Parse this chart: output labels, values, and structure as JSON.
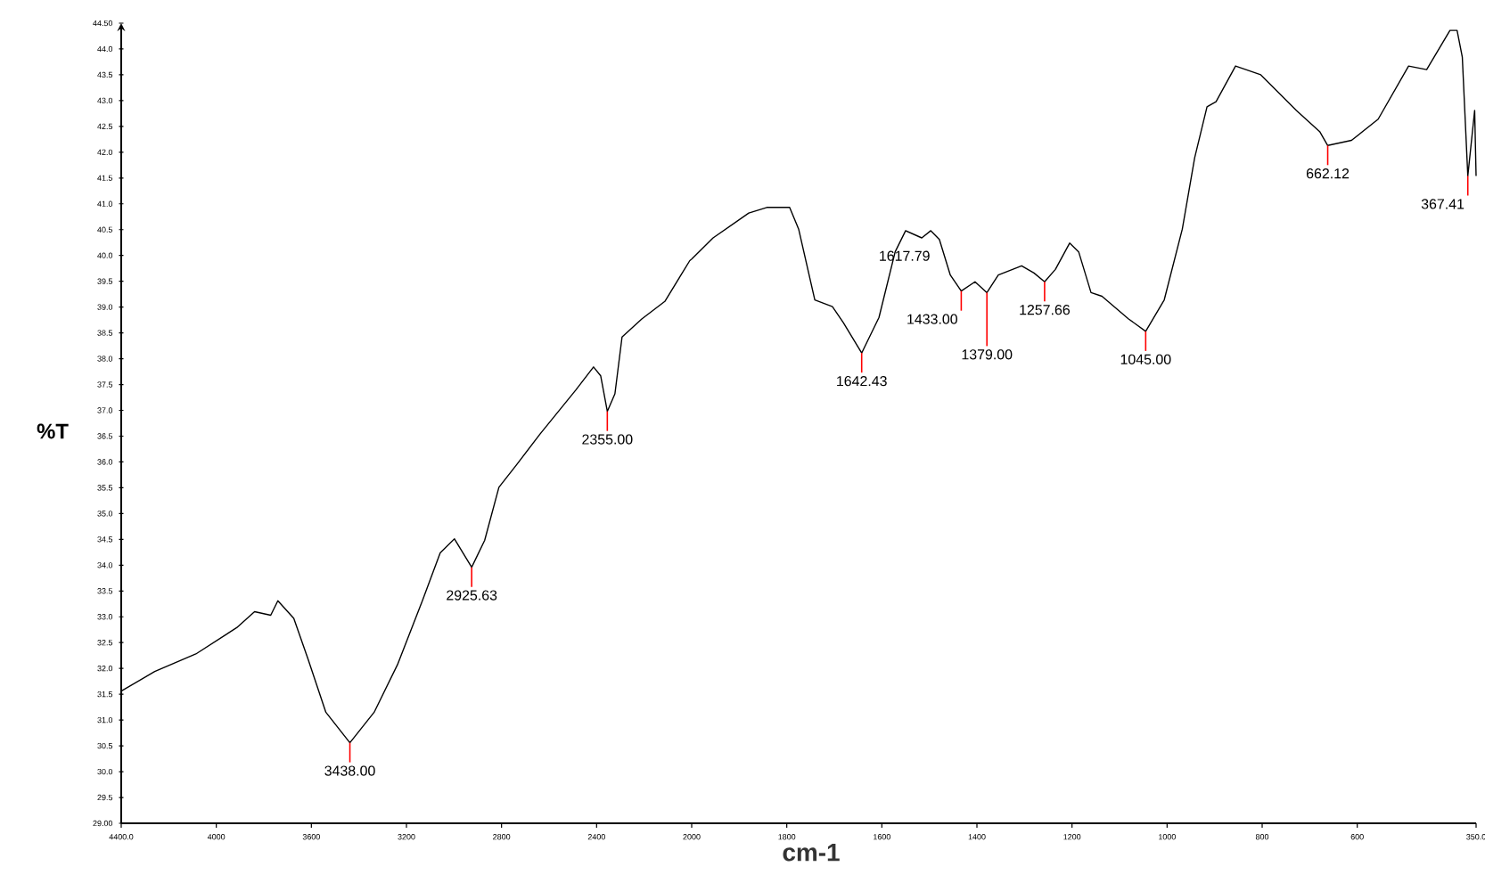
{
  "chart_data": [
    {
      "type": "line",
      "ylabel": "%T",
      "x": [
        4400,
        4259,
        4086,
        3914,
        3839,
        3771,
        3741,
        3674,
        3614,
        3539,
        3438,
        3336,
        3238,
        3133,
        3058,
        2998,
        2925.63,
        2871,
        2811,
        2736,
        2638,
        2488,
        2413,
        2383,
        2355,
        2323,
        2293,
        2210,
        2113,
        2008,
        2000
      ],
      "series": [
        {
          "color": "#000000",
          "values": [
            31.56,
            31.94,
            32.28,
            32.79,
            33.1,
            33.03,
            33.31,
            32.97,
            32.18,
            31.15,
            30.56,
            31.15,
            32.07,
            33.31,
            34.24,
            34.51,
            33.96,
            34.48,
            35.51,
            35.95,
            36.54,
            37.39,
            37.84,
            37.67,
            36.98,
            37.32,
            38.42,
            38.77,
            39.11,
            39.9,
            39.93
          ]
        }
      ],
      "xlim": [
        4400,
        2000
      ],
      "xticks": [
        {
          "value": 4400,
          "label": "4400.0"
        },
        {
          "value": 4000,
          "label": "4000"
        },
        {
          "value": 3600,
          "label": "3600"
        },
        {
          "value": 3200,
          "label": "3200"
        },
        {
          "value": 2800,
          "label": "2800"
        },
        {
          "value": 2400,
          "label": "2400"
        },
        {
          "value": 2000,
          "label": "2000"
        }
      ],
      "ylim": [
        29,
        44.5
      ],
      "yticks": [
        {
          "value": 29,
          "label": "29.00"
        },
        {
          "value": 29.5,
          "label": "29.5"
        },
        {
          "value": 30,
          "label": "30.0"
        },
        {
          "value": 30.5,
          "label": "30.5"
        },
        {
          "value": 31,
          "label": "31.0"
        },
        {
          "value": 31.5,
          "label": "31.5"
        },
        {
          "value": 32,
          "label": "32.0"
        },
        {
          "value": 32.5,
          "label": "32.5"
        },
        {
          "value": 33,
          "label": "33.0"
        },
        {
          "value": 33.5,
          "label": "33.5"
        },
        {
          "value": 34,
          "label": "34.0"
        },
        {
          "value": 34.5,
          "label": "34.5"
        },
        {
          "value": 35,
          "label": "35.0"
        },
        {
          "value": 35.5,
          "label": "35.5"
        },
        {
          "value": 36,
          "label": "36.0"
        },
        {
          "value": 36.5,
          "label": "36.5"
        },
        {
          "value": 37,
          "label": "37.0"
        },
        {
          "value": 37.5,
          "label": "37.5"
        },
        {
          "value": 38,
          "label": "38.0"
        },
        {
          "value": 38.5,
          "label": "38.5"
        },
        {
          "value": 39,
          "label": "39.0"
        },
        {
          "value": 39.5,
          "label": "39.5"
        },
        {
          "value": 40,
          "label": "40.0"
        },
        {
          "value": 40.5,
          "label": "40.5"
        },
        {
          "value": 41,
          "label": "41.0"
        },
        {
          "value": 41.5,
          "label": "41.5"
        },
        {
          "value": 42,
          "label": "42.0"
        },
        {
          "value": 42.5,
          "label": "42.5"
        },
        {
          "value": 43,
          "label": "43.0"
        },
        {
          "value": 43.5,
          "label": "43.5"
        },
        {
          "value": 44,
          "label": "44.0"
        },
        {
          "value": 44.5,
          "label": "44.50"
        }
      ],
      "grid": false,
      "marker": "none",
      "line_style": "solid",
      "annotations": [
        {
          "text": "3438.00",
          "x": 3438,
          "y": 30.56
        },
        {
          "text": "2925.63",
          "x": 2925.63,
          "y": 33.96
        },
        {
          "text": "2355.00",
          "x": 2355,
          "y": 36.98
        }
      ]
    },
    {
      "type": "line",
      "xlabel": "cm-1",
      "x": [
        2000,
        1955,
        1880,
        1842,
        1794,
        1775,
        1741,
        1704,
        1681,
        1642.43,
        1606,
        1572,
        1550,
        1516,
        1497,
        1479,
        1456,
        1433,
        1404,
        1379,
        1355,
        1306,
        1280,
        1257.66,
        1235,
        1205,
        1186,
        1160,
        1137,
        1081,
        1045,
        1006,
        968,
        942,
        916,
        897,
        856,
        803,
        728,
        679,
        662.12,
        612,
        556,
        492,
        454,
        405,
        390,
        379,
        367.41,
        353,
        350
      ],
      "series": [
        {
          "color": "#000000",
          "values": [
            39.93,
            40.34,
            40.82,
            40.93,
            40.93,
            40.51,
            39.14,
            39.01,
            38.7,
            38.11,
            38.8,
            40.07,
            40.48,
            40.34,
            40.48,
            40.31,
            39.62,
            39.31,
            39.49,
            39.28,
            39.62,
            39.8,
            39.66,
            39.49,
            39.73,
            40.24,
            40.07,
            39.28,
            39.21,
            38.77,
            38.53,
            39.14,
            40.51,
            41.89,
            42.88,
            42.98,
            43.67,
            43.5,
            42.81,
            42.4,
            42.13,
            42.23,
            42.64,
            43.67,
            43.6,
            44.36,
            44.36,
            43.84,
            41.54,
            42.81,
            41.54
          ]
        }
      ],
      "xlim": [
        2000,
        350
      ],
      "xticks": [
        {
          "value": 1800,
          "label": "1800"
        },
        {
          "value": 1600,
          "label": "1600"
        },
        {
          "value": 1400,
          "label": "1400"
        },
        {
          "value": 1200,
          "label": "1200"
        },
        {
          "value": 1000,
          "label": "1000"
        },
        {
          "value": 800,
          "label": "800"
        },
        {
          "value": 600,
          "label": "600"
        },
        {
          "value": 350,
          "label": "350.0"
        }
      ],
      "ylim": [
        29,
        44.5
      ],
      "tick_labels": "x",
      "grid": false,
      "marker": "none",
      "line_style": "solid",
      "annotations": [
        {
          "text": "1642.43",
          "x": 1642.43,
          "y": 38.11
        },
        "1617.79",
        {
          "text": "1433.00",
          "x": 1433,
          "y": 39.31
        },
        {
          "text": "1379.00",
          "x": 1379,
          "y": 39.28
        },
        {
          "text": "1257.66",
          "x": 1257.66,
          "y": 39.49
        },
        {
          "text": "1045.00",
          "x": 1045,
          "y": 38.53
        },
        {
          "text": "662.12",
          "x": 662.12,
          "y": 42.13
        },
        {
          "text": "367.41",
          "x": 367.41,
          "y": 41.54
        }
      ]
    }
  ]
}
